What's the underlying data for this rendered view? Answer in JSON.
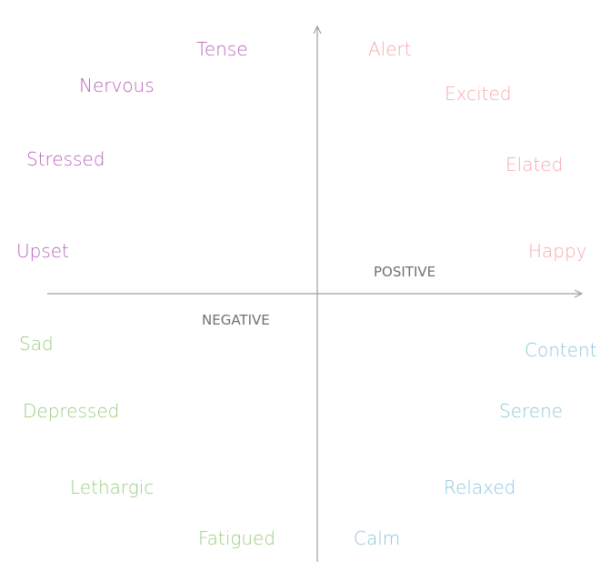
{
  "colors": {
    "tense_negative": "#b565b9",
    "alert_positive": "#f4a9ae",
    "fatigue_negative": "#9bcc80",
    "calm_positive": "#8ec6da",
    "axis": "#a0a0a0",
    "axis_label": "#707070"
  },
  "axis_labels": {
    "positive": "POSITIVE",
    "negative": "NEGATIVE"
  },
  "quadrants": {
    "upper_left": [
      "Tense",
      "Nervous",
      "Stressed",
      "Upset"
    ],
    "upper_right": [
      "Alert",
      "Excited",
      "Elated",
      "Happy"
    ],
    "lower_left": [
      "Sad",
      "Depressed",
      "Lethargic",
      "Fatigued"
    ],
    "lower_right": [
      "Content",
      "Serene",
      "Relaxed",
      "Calm"
    ]
  }
}
